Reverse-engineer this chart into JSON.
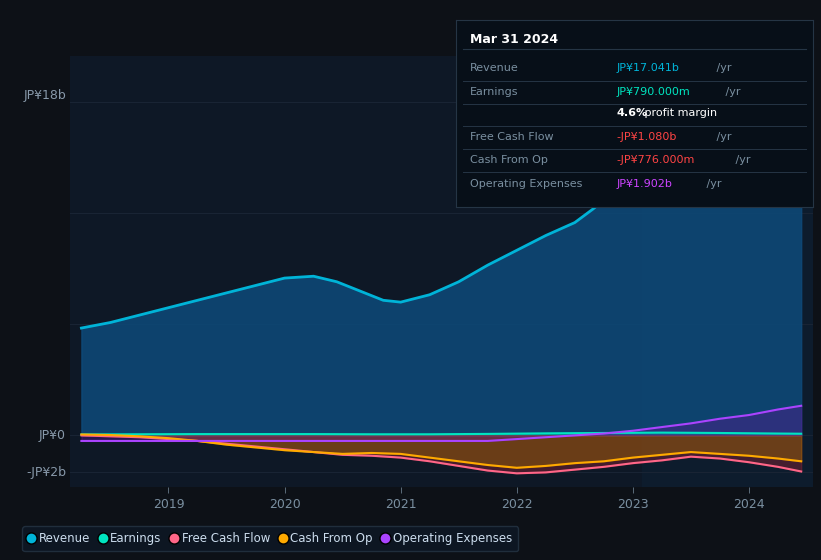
{
  "bg_color": "#0d1117",
  "plot_bg_color": "#0e1826",
  "grid_color": "#1a2535",
  "ylim": [
    -2.8,
    20.5
  ],
  "xlim": [
    2018.15,
    2024.55
  ],
  "highlight_x_start": 2023.08,
  "ylabel_top": "JP¥18b",
  "ylabel_mid": "JP¥0",
  "ylabel_bot": "-JP¥2b",
  "xtick_positions": [
    2019,
    2020,
    2021,
    2022,
    2023,
    2024
  ],
  "xtick_labels": [
    "2019",
    "2020",
    "2021",
    "2022",
    "2023",
    "2024"
  ],
  "revenue_x": [
    2018.25,
    2018.5,
    2018.75,
    2019.0,
    2019.25,
    2019.5,
    2019.75,
    2020.0,
    2020.25,
    2020.45,
    2020.65,
    2020.85,
    2021.0,
    2021.25,
    2021.5,
    2021.75,
    2022.0,
    2022.25,
    2022.5,
    2022.65,
    2022.75,
    2022.9,
    2023.0,
    2023.25,
    2023.4,
    2023.55,
    2023.75,
    2024.0,
    2024.25,
    2024.45
  ],
  "revenue_y": [
    5.8,
    6.1,
    6.5,
    6.9,
    7.3,
    7.7,
    8.1,
    8.5,
    8.6,
    8.3,
    7.8,
    7.3,
    7.2,
    7.6,
    8.3,
    9.2,
    10.0,
    10.8,
    11.5,
    12.2,
    12.7,
    12.5,
    12.8,
    13.5,
    13.1,
    14.0,
    15.0,
    16.5,
    17.5,
    18.2
  ],
  "earnings_x": [
    2018.25,
    2018.75,
    2019.25,
    2019.75,
    2020.25,
    2020.75,
    2021.25,
    2021.75,
    2022.25,
    2022.75,
    2023.25,
    2023.75,
    2024.25,
    2024.45
  ],
  "earnings_y": [
    0.05,
    0.06,
    0.07,
    0.07,
    0.07,
    0.06,
    0.06,
    0.08,
    0.11,
    0.13,
    0.15,
    0.13,
    0.1,
    0.09
  ],
  "fcf_x": [
    2018.25,
    2018.5,
    2018.75,
    2019.0,
    2019.25,
    2019.5,
    2019.75,
    2020.0,
    2020.25,
    2020.5,
    2020.75,
    2021.0,
    2021.25,
    2021.5,
    2021.75,
    2022.0,
    2022.25,
    2022.5,
    2022.75,
    2023.0,
    2023.25,
    2023.5,
    2023.75,
    2024.0,
    2024.25,
    2024.45
  ],
  "fcf_y": [
    0.0,
    -0.05,
    -0.1,
    -0.2,
    -0.3,
    -0.45,
    -0.6,
    -0.75,
    -0.9,
    -1.05,
    -1.1,
    -1.2,
    -1.4,
    -1.65,
    -1.9,
    -2.05,
    -2.0,
    -1.85,
    -1.7,
    -1.5,
    -1.35,
    -1.15,
    -1.25,
    -1.45,
    -1.7,
    -1.95
  ],
  "cashfromop_x": [
    2018.25,
    2018.5,
    2018.75,
    2019.0,
    2019.25,
    2019.5,
    2019.75,
    2020.0,
    2020.25,
    2020.5,
    2020.75,
    2021.0,
    2021.25,
    2021.5,
    2021.75,
    2022.0,
    2022.25,
    2022.5,
    2022.75,
    2023.0,
    2023.25,
    2023.5,
    2023.75,
    2024.0,
    2024.25,
    2024.45
  ],
  "cashfromop_y": [
    0.05,
    0.02,
    -0.05,
    -0.15,
    -0.3,
    -0.5,
    -0.65,
    -0.8,
    -0.9,
    -1.0,
    -0.95,
    -1.0,
    -1.2,
    -1.4,
    -1.6,
    -1.75,
    -1.65,
    -1.5,
    -1.4,
    -1.2,
    -1.05,
    -0.9,
    -1.0,
    -1.1,
    -1.25,
    -1.4
  ],
  "opex_x": [
    2018.25,
    2018.75,
    2019.25,
    2019.75,
    2020.25,
    2020.75,
    2021.25,
    2021.75,
    2022.0,
    2022.25,
    2022.5,
    2022.75,
    2023.0,
    2023.25,
    2023.5,
    2023.75,
    2024.0,
    2024.25,
    2024.45
  ],
  "opex_y": [
    -0.3,
    -0.3,
    -0.3,
    -0.3,
    -0.3,
    -0.3,
    -0.3,
    -0.3,
    -0.2,
    -0.1,
    0.0,
    0.1,
    0.25,
    0.45,
    0.65,
    0.9,
    1.1,
    1.4,
    1.6
  ],
  "info_title": "Mar 31 2024",
  "info_rows": [
    {
      "label": "Revenue",
      "value": "JP¥17.041b",
      "unit": " /yr",
      "vc": "#00b4d8"
    },
    {
      "label": "Earnings",
      "value": "JP¥790.000m",
      "unit": " /yr",
      "vc": "#00e5c0"
    },
    {
      "label": "",
      "value": "4.6%",
      "unit": " profit margin",
      "vc": "#ffffff",
      "bold": true
    },
    {
      "label": "Free Cash Flow",
      "value": "-JP¥1.080b",
      "unit": " /yr",
      "vc": "#ff4444"
    },
    {
      "label": "Cash From Op",
      "value": "-JP¥776.000m",
      "unit": " /yr",
      "vc": "#ff4444"
    },
    {
      "label": "Operating Expenses",
      "value": "JP¥1.902b",
      "unit": " /yr",
      "vc": "#cc44ff"
    }
  ],
  "legend_items": [
    {
      "label": "Revenue",
      "color": "#00b4d8"
    },
    {
      "label": "Earnings",
      "color": "#00e5c0"
    },
    {
      "label": "Free Cash Flow",
      "color": "#ff6688"
    },
    {
      "label": "Cash From Op",
      "color": "#ffaa00"
    },
    {
      "label": "Operating Expenses",
      "color": "#aa44ff"
    }
  ]
}
